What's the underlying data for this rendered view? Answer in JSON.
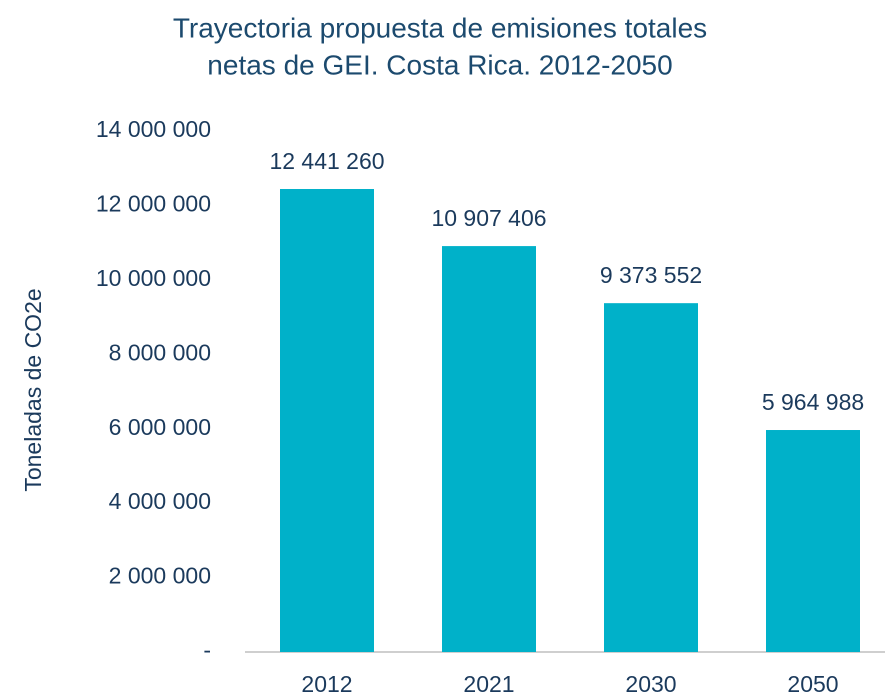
{
  "chart_data": {
    "type": "bar",
    "title": [
      "Trayectoria propuesta de emisiones totales",
      "netas de GEI. Costa Rica.  2012-2050"
    ],
    "y_label": "Toneladas de CO2e",
    "categories": [
      "2012",
      "2021",
      "2030",
      "2050"
    ],
    "values": [
      12441260,
      10907406,
      9373552,
      5964988
    ],
    "value_labels": [
      "12 441 260",
      "10 907 406",
      "9 373 552",
      "5 964 988"
    ],
    "color": "#00b1c9",
    "ylim": [
      0,
      14000000
    ],
    "yticks": [
      {
        "value": 0,
        "label": "-"
      },
      {
        "value": 2000000,
        "label": "2 000 000"
      },
      {
        "value": 4000000,
        "label": "4 000 000"
      },
      {
        "value": 6000000,
        "label": "6 000 000"
      },
      {
        "value": 8000000,
        "label": "8 000 000"
      },
      {
        "value": 10000000,
        "label": "10 000 000"
      },
      {
        "value": 12000000,
        "label": "12 000 000"
      },
      {
        "value": 14000000,
        "label": "14 000 000"
      }
    ],
    "grid": false
  }
}
